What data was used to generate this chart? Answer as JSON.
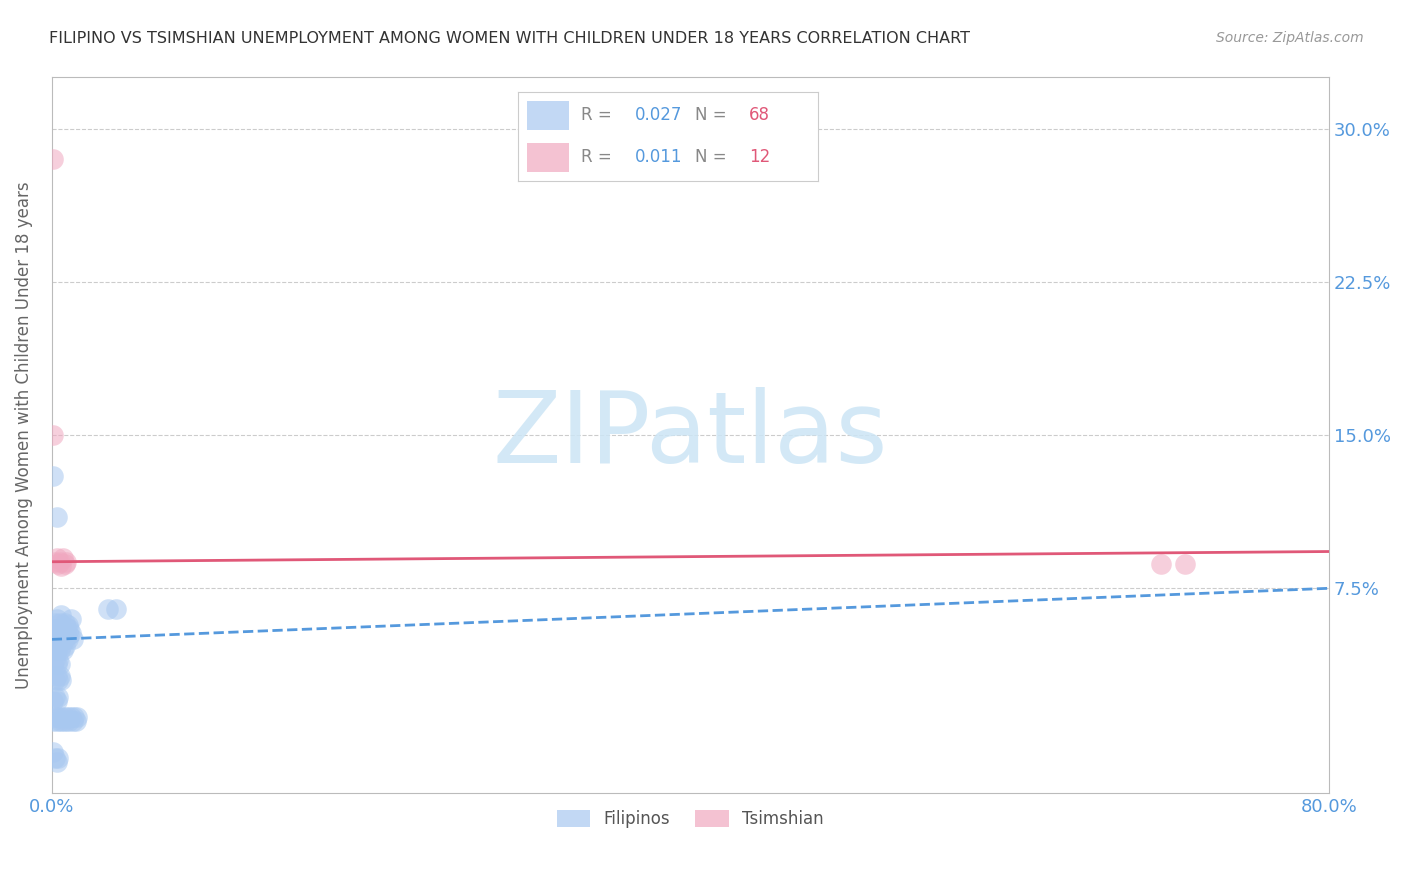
{
  "title": "FILIPINO VS TSIMSHIAN UNEMPLOYMENT AMONG WOMEN WITH CHILDREN UNDER 18 YEARS CORRELATION CHART",
  "source": "Source: ZipAtlas.com",
  "ylabel": "Unemployment Among Women with Children Under 18 years",
  "xlim": [
    0.0,
    0.8
  ],
  "ylim": [
    -0.025,
    0.325
  ],
  "yticks": [
    0.075,
    0.15,
    0.225,
    0.3
  ],
  "ytick_labels": [
    "7.5%",
    "15.0%",
    "22.5%",
    "30.0%"
  ],
  "xtick_labels": [
    "0.0%",
    "",
    "",
    "",
    "",
    "",
    "",
    "",
    "80.0%"
  ],
  "filipino_R": "0.027",
  "filipino_N": "68",
  "tsimshian_R": "0.011",
  "tsimshian_N": "12",
  "filipino_color": "#a8c8f0",
  "tsimshian_color": "#f0a8c0",
  "filipino_line_color": "#5599dd",
  "tsimshian_line_color": "#e05878",
  "watermark_color": "#cce5f5",
  "background_color": "#ffffff",
  "grid_color": "#cccccc",
  "axis_color": "#bbbbbb",
  "tick_color": "#5599dd",
  "title_color": "#333333",
  "source_color": "#999999",
  "filipino_x": [
    0.001,
    0.002,
    0.003,
    0.004,
    0.005,
    0.006,
    0.007,
    0.008,
    0.009,
    0.01,
    0.011,
    0.012,
    0.002,
    0.003,
    0.004,
    0.005,
    0.006,
    0.007,
    0.008,
    0.009,
    0.01,
    0.011,
    0.012,
    0.013,
    0.003,
    0.004,
    0.005,
    0.006,
    0.007,
    0.008,
    0.001,
    0.002,
    0.003,
    0.004,
    0.005,
    0.002,
    0.003,
    0.004,
    0.005,
    0.006,
    0.001,
    0.002,
    0.003,
    0.004,
    0.001,
    0.002,
    0.003,
    0.004,
    0.005,
    0.006,
    0.007,
    0.008,
    0.009,
    0.01,
    0.011,
    0.012,
    0.013,
    0.014,
    0.015,
    0.016,
    0.001,
    0.003,
    0.035,
    0.04,
    0.001,
    0.002,
    0.003,
    0.004
  ],
  "filipino_y": [
    0.055,
    0.058,
    0.06,
    0.055,
    0.058,
    0.062,
    0.055,
    0.058,
    0.056,
    0.057,
    0.055,
    0.06,
    0.05,
    0.052,
    0.053,
    0.05,
    0.052,
    0.053,
    0.05,
    0.052,
    0.05,
    0.052,
    0.053,
    0.05,
    0.045,
    0.047,
    0.045,
    0.047,
    0.045,
    0.047,
    0.038,
    0.04,
    0.038,
    0.04,
    0.038,
    0.03,
    0.032,
    0.03,
    0.032,
    0.03,
    0.02,
    0.022,
    0.02,
    0.022,
    0.01,
    0.012,
    0.01,
    0.012,
    0.01,
    0.012,
    0.01,
    0.012,
    0.01,
    0.012,
    0.01,
    0.012,
    0.01,
    0.012,
    0.01,
    0.012,
    0.13,
    0.11,
    0.065,
    0.065,
    -0.005,
    -0.008,
    -0.01,
    -0.008
  ],
  "tsimshian_x": [
    0.001,
    0.001,
    0.002,
    0.003,
    0.004,
    0.005,
    0.006,
    0.007,
    0.008,
    0.009,
    0.695,
    0.71
  ],
  "tsimshian_y": [
    0.285,
    0.15,
    0.088,
    0.09,
    0.087,
    0.088,
    0.086,
    0.09,
    0.087,
    0.088,
    0.087,
    0.087
  ],
  "fil_line_x": [
    0.0,
    0.8
  ],
  "fil_line_y": [
    0.05,
    0.075
  ],
  "tsim_line_x": [
    0.0,
    0.8
  ],
  "tsim_line_y": [
    0.088,
    0.093
  ]
}
